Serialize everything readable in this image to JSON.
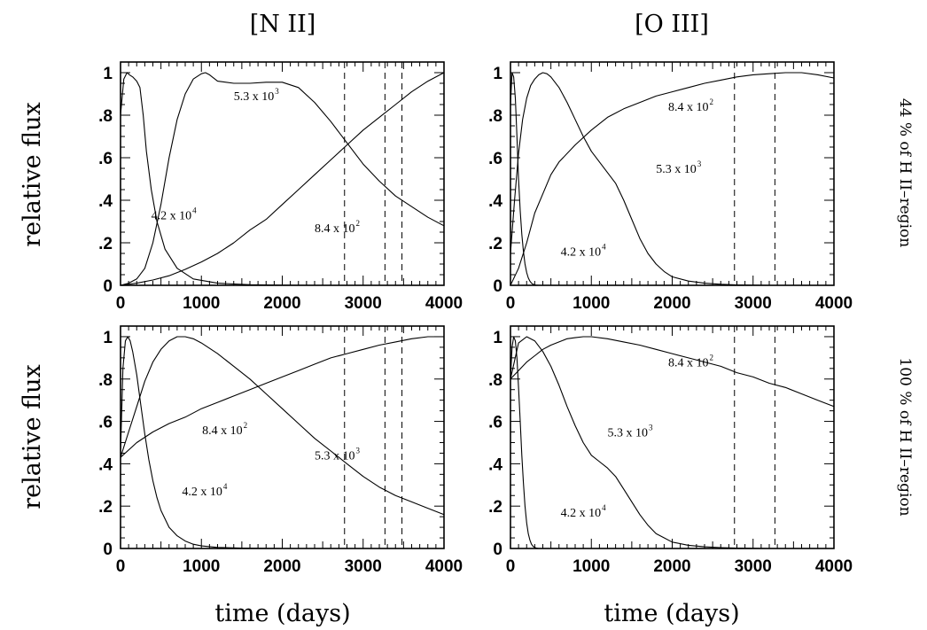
{
  "column_titles": [
    "[N II]",
    "[O III]"
  ],
  "row_labels": [
    "44 % of H II–region",
    "100 % of H II–region"
  ],
  "ylabel": "relative flux",
  "xlabel": "time (days)",
  "chart_data": [
    {
      "type": "line",
      "panel": "top-left",
      "xlim": [
        0,
        4000
      ],
      "ylim": [
        0,
        1.05
      ],
      "xticks": [
        "0",
        "1000",
        "2000",
        "3000",
        "4000"
      ],
      "yticks": [
        "0",
        ".2",
        ".4",
        ".6",
        ".8",
        "1"
      ],
      "vlines": [
        2770,
        3270,
        3480
      ],
      "series": [
        {
          "label": {
            "mant": "4.2 x 10",
            "exp": "4"
          },
          "label_at": [
            380,
            0.31
          ],
          "x": [
            0,
            40,
            80,
            110,
            150,
            200,
            240,
            280,
            320,
            380,
            450,
            550,
            700,
            900,
            1200,
            1600,
            2000,
            2500,
            4000
          ],
          "y": [
            0.8,
            0.97,
            1.0,
            0.99,
            0.98,
            0.96,
            0.93,
            0.8,
            0.63,
            0.45,
            0.3,
            0.17,
            0.08,
            0.03,
            0.01,
            0.003,
            0.001,
            0,
            0
          ]
        },
        {
          "label": {
            "mant": "5.3 x 10",
            "exp": "3"
          },
          "label_at": [
            1400,
            0.87
          ],
          "x": [
            0,
            100,
            200,
            300,
            400,
            500,
            600,
            700,
            800,
            900,
            1000,
            1050,
            1100,
            1200,
            1400,
            1600,
            1800,
            2000,
            2200,
            2400,
            2600,
            2800,
            3000,
            3200,
            3400,
            3600,
            3800,
            4000
          ],
          "y": [
            0,
            0.01,
            0.03,
            0.08,
            0.2,
            0.38,
            0.6,
            0.78,
            0.9,
            0.97,
            0.995,
            1.0,
            0.99,
            0.96,
            0.95,
            0.95,
            0.955,
            0.955,
            0.93,
            0.86,
            0.77,
            0.67,
            0.57,
            0.49,
            0.42,
            0.37,
            0.32,
            0.28
          ]
        },
        {
          "label": {
            "mant": "8.4 x 10",
            "exp": "2"
          },
          "label_at": [
            2400,
            0.25
          ],
          "x": [
            0,
            200,
            400,
            600,
            800,
            1000,
            1200,
            1400,
            1600,
            1800,
            2000,
            2200,
            2400,
            2600,
            2800,
            3000,
            3200,
            3400,
            3600,
            3800,
            4000
          ],
          "y": [
            0,
            0.01,
            0.025,
            0.045,
            0.075,
            0.11,
            0.15,
            0.2,
            0.26,
            0.31,
            0.38,
            0.45,
            0.52,
            0.59,
            0.66,
            0.73,
            0.79,
            0.85,
            0.91,
            0.96,
            1.0
          ]
        }
      ]
    },
    {
      "type": "line",
      "panel": "top-right",
      "xlim": [
        0,
        4000
      ],
      "ylim": [
        0,
        1.05
      ],
      "xticks": [
        "0",
        "1000",
        "2000",
        "3000",
        "4000"
      ],
      "yticks": [
        "0",
        ".2",
        ".4",
        ".6",
        ".8",
        "1"
      ],
      "vlines": [
        2770,
        3270
      ],
      "series": [
        {
          "label": {
            "mant": "4.2 x 10",
            "exp": "4"
          },
          "label_at": [
            620,
            0.14
          ],
          "x": [
            0,
            20,
            40,
            60,
            80,
            100,
            120,
            140,
            160,
            180,
            200,
            220,
            240,
            260,
            280,
            300,
            320,
            350,
            400,
            500,
            4000
          ],
          "y": [
            0.85,
            1.0,
            0.98,
            0.88,
            0.7,
            0.5,
            0.35,
            0.24,
            0.16,
            0.1,
            0.06,
            0.035,
            0.02,
            0.01,
            0.005,
            0.002,
            0.001,
            0,
            0,
            0,
            0
          ]
        },
        {
          "label": {
            "mant": "5.3 x 10",
            "exp": "3"
          },
          "label_at": [
            1800,
            0.53
          ],
          "x": [
            0,
            50,
            100,
            150,
            200,
            250,
            300,
            350,
            400,
            450,
            500,
            550,
            600,
            700,
            800,
            900,
            1000,
            1100,
            1200,
            1300,
            1400,
            1500,
            1600,
            1700,
            1800,
            1900,
            2000,
            2200,
            2400,
            2600,
            2800,
            3000,
            3200,
            4000
          ],
          "y": [
            0.15,
            0.4,
            0.62,
            0.78,
            0.88,
            0.94,
            0.97,
            0.99,
            1.0,
            0.995,
            0.98,
            0.955,
            0.93,
            0.86,
            0.78,
            0.7,
            0.63,
            0.58,
            0.53,
            0.48,
            0.4,
            0.31,
            0.22,
            0.15,
            0.1,
            0.065,
            0.04,
            0.02,
            0.01,
            0.005,
            0.002,
            0.001,
            0,
            0
          ]
        },
        {
          "label": {
            "mant": "8.4 x 10",
            "exp": "2"
          },
          "label_at": [
            1950,
            0.82
          ],
          "x": [
            0,
            100,
            200,
            300,
            400,
            500,
            600,
            800,
            1000,
            1200,
            1400,
            1600,
            1800,
            2000,
            2200,
            2400,
            2600,
            2800,
            3000,
            3200,
            3400,
            3600,
            3800,
            4000
          ],
          "y": [
            0,
            0.08,
            0.2,
            0.34,
            0.43,
            0.52,
            0.58,
            0.66,
            0.73,
            0.79,
            0.83,
            0.86,
            0.89,
            0.91,
            0.93,
            0.95,
            0.965,
            0.98,
            0.99,
            0.995,
            1.0,
            1.0,
            0.99,
            0.975
          ]
        }
      ]
    },
    {
      "type": "line",
      "panel": "bottom-left",
      "xlim": [
        0,
        4000
      ],
      "ylim": [
        0,
        1.05
      ],
      "xticks": [
        "0",
        "1000",
        "2000",
        "3000",
        "4000"
      ],
      "yticks": [
        "0",
        ".2",
        ".4",
        ".6",
        ".8",
        "1"
      ],
      "vlines": [
        2770,
        3270,
        3480
      ],
      "series": [
        {
          "label": {
            "mant": "4.2 x 10",
            "exp": "4"
          },
          "label_at": [
            760,
            0.25
          ],
          "x": [
            0,
            30,
            60,
            90,
            120,
            150,
            200,
            250,
            300,
            350,
            400,
            450,
            500,
            600,
            700,
            800,
            900,
            1000,
            1200,
            1500,
            2000,
            2500,
            4000
          ],
          "y": [
            0.45,
            0.85,
            0.98,
            1.0,
            0.98,
            0.93,
            0.82,
            0.68,
            0.54,
            0.42,
            0.32,
            0.24,
            0.18,
            0.1,
            0.06,
            0.035,
            0.02,
            0.012,
            0.005,
            0.002,
            0,
            0,
            0
          ]
        },
        {
          "label": {
            "mant": "5.3 x 10",
            "exp": "3"
          },
          "label_at": [
            2400,
            0.42
          ],
          "x": [
            0,
            100,
            200,
            300,
            400,
            500,
            600,
            700,
            800,
            900,
            1000,
            1200,
            1400,
            1600,
            1800,
            2000,
            2200,
            2400,
            2600,
            2800,
            3000,
            3200,
            3400,
            3600,
            3800,
            4000
          ],
          "y": [
            0.43,
            0.55,
            0.67,
            0.79,
            0.88,
            0.94,
            0.98,
            1.0,
            1.0,
            0.99,
            0.97,
            0.92,
            0.86,
            0.8,
            0.73,
            0.66,
            0.59,
            0.52,
            0.46,
            0.4,
            0.34,
            0.29,
            0.25,
            0.22,
            0.19,
            0.16
          ]
        },
        {
          "label": {
            "mant": "8.4 x 10",
            "exp": "2"
          },
          "label_at": [
            1010,
            0.54
          ],
          "x": [
            0,
            200,
            400,
            600,
            800,
            1000,
            1200,
            1400,
            1600,
            1800,
            2000,
            2200,
            2400,
            2600,
            2800,
            3000,
            3200,
            3400,
            3600,
            3800,
            4000
          ],
          "y": [
            0.43,
            0.5,
            0.55,
            0.59,
            0.62,
            0.66,
            0.69,
            0.72,
            0.75,
            0.78,
            0.81,
            0.84,
            0.87,
            0.9,
            0.92,
            0.94,
            0.96,
            0.975,
            0.99,
            1.0,
            1.0
          ]
        }
      ]
    },
    {
      "type": "line",
      "panel": "bottom-right",
      "xlim": [
        0,
        4000
      ],
      "ylim": [
        0,
        1.05
      ],
      "xticks": [
        "0",
        "1000",
        "2000",
        "3000",
        "4000"
      ],
      "yticks": [
        "0",
        ".2",
        ".4",
        ".6",
        ".8",
        "1"
      ],
      "vlines": [
        2770,
        3270
      ],
      "series": [
        {
          "label": {
            "mant": "4.2 x 10",
            "exp": "4"
          },
          "label_at": [
            620,
            0.15
          ],
          "x": [
            0,
            20,
            40,
            60,
            80,
            100,
            120,
            140,
            160,
            180,
            200,
            220,
            240,
            260,
            280,
            300,
            320,
            350,
            400,
            4000
          ],
          "y": [
            0.8,
            0.95,
            1.0,
            0.98,
            0.9,
            0.76,
            0.6,
            0.44,
            0.31,
            0.2,
            0.12,
            0.07,
            0.04,
            0.02,
            0.01,
            0.005,
            0.002,
            0,
            0,
            0
          ]
        },
        {
          "label": {
            "mant": "5.3 x 10",
            "exp": "3"
          },
          "label_at": [
            1200,
            0.53
          ],
          "x": [
            0,
            100,
            200,
            300,
            400,
            500,
            600,
            700,
            800,
            900,
            1000,
            1100,
            1200,
            1300,
            1400,
            1500,
            1600,
            1700,
            1800,
            1900,
            2000,
            2200,
            2400,
            2600,
            2800,
            3000,
            3200,
            4000
          ],
          "y": [
            0.8,
            0.97,
            1.0,
            0.98,
            0.93,
            0.86,
            0.77,
            0.67,
            0.58,
            0.5,
            0.44,
            0.41,
            0.38,
            0.34,
            0.28,
            0.22,
            0.16,
            0.11,
            0.07,
            0.05,
            0.03,
            0.015,
            0.008,
            0.004,
            0.002,
            0.001,
            0,
            0
          ]
        },
        {
          "label": {
            "mant": "8.4 x 10",
            "exp": "2"
          },
          "label_at": [
            1950,
            0.86
          ],
          "x": [
            0,
            100,
            200,
            300,
            400,
            500,
            600,
            700,
            800,
            900,
            1000,
            1200,
            1400,
            1600,
            1800,
            2000,
            2200,
            2400,
            2600,
            2800,
            3000,
            3200,
            3400,
            3600,
            3800,
            4000
          ],
          "y": [
            0.8,
            0.84,
            0.88,
            0.91,
            0.94,
            0.96,
            0.975,
            0.99,
            0.995,
            1.0,
            1.0,
            0.99,
            0.975,
            0.96,
            0.94,
            0.92,
            0.9,
            0.88,
            0.86,
            0.83,
            0.81,
            0.78,
            0.76,
            0.73,
            0.7,
            0.67
          ]
        }
      ]
    }
  ]
}
